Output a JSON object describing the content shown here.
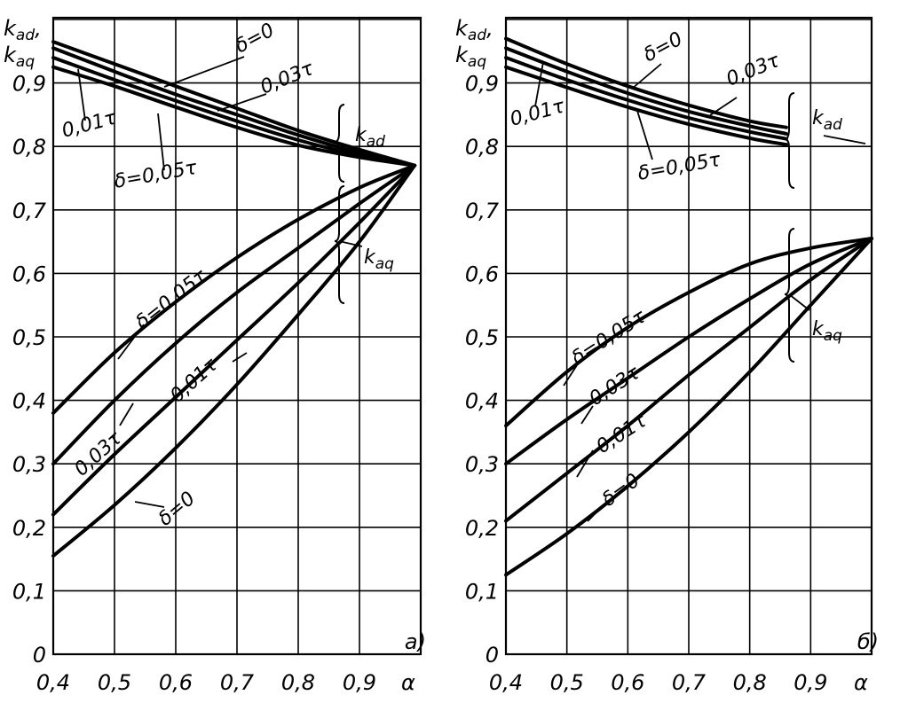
{
  "chart_data": [
    {
      "type": "line",
      "panel_label": "a)",
      "xlabel": "α",
      "ylabel_lines": [
        "k",
        "ad",
        ",",
        "k",
        "aq"
      ],
      "xlim": [
        0.4,
        1.0
      ],
      "ylim": [
        0,
        1.0
      ],
      "x_ticks": [
        "0,4",
        "0,5",
        "0,6",
        "0,7",
        "0,8",
        "0,9"
      ],
      "y_ticks": [
        "0",
        "0,1",
        "0,2",
        "0,3",
        "0,4",
        "0,5",
        "0,6",
        "0,7",
        "0,8",
        "0,9"
      ],
      "grid": true,
      "series": [
        {
          "name": "δ=0",
          "group": "kad",
          "x": [
            0.4,
            0.5,
            0.6,
            0.7,
            0.8,
            0.9,
            0.99
          ],
          "y": [
            0.965,
            0.93,
            0.895,
            0.86,
            0.825,
            0.795,
            0.77
          ]
        },
        {
          "name": "0,01τ",
          "group": "kad",
          "x": [
            0.4,
            0.5,
            0.6,
            0.7,
            0.8,
            0.9,
            0.99
          ],
          "y": [
            0.955,
            0.918,
            0.882,
            0.85,
            0.818,
            0.79,
            0.77
          ]
        },
        {
          "name": "0,03τ",
          "group": "kad",
          "x": [
            0.4,
            0.5,
            0.6,
            0.7,
            0.8,
            0.9,
            0.99
          ],
          "y": [
            0.94,
            0.905,
            0.872,
            0.84,
            0.81,
            0.786,
            0.77
          ]
        },
        {
          "name": "δ=0,05τ",
          "group": "kad",
          "x": [
            0.4,
            0.5,
            0.6,
            0.7,
            0.8,
            0.9,
            0.99
          ],
          "y": [
            0.925,
            0.895,
            0.862,
            0.83,
            0.802,
            0.783,
            0.77
          ]
        },
        {
          "name": "δ=0,05τ",
          "group": "kaq",
          "x": [
            0.4,
            0.5,
            0.6,
            0.7,
            0.8,
            0.9,
            0.99
          ],
          "y": [
            0.38,
            0.475,
            0.555,
            0.625,
            0.685,
            0.735,
            0.77
          ]
        },
        {
          "name": "0,03τ",
          "group": "kaq",
          "x": [
            0.4,
            0.5,
            0.6,
            0.7,
            0.8,
            0.9,
            0.99
          ],
          "y": [
            0.3,
            0.4,
            0.49,
            0.57,
            0.64,
            0.71,
            0.77
          ]
        },
        {
          "name": "0,01τ",
          "group": "kaq",
          "x": [
            0.4,
            0.5,
            0.6,
            0.7,
            0.8,
            0.9,
            0.99
          ],
          "y": [
            0.22,
            0.315,
            0.405,
            0.495,
            0.585,
            0.68,
            0.77
          ]
        },
        {
          "name": "δ=0",
          "group": "kaq",
          "x": [
            0.4,
            0.5,
            0.6,
            0.7,
            0.8,
            0.9,
            0.99
          ],
          "y": [
            0.155,
            0.235,
            0.325,
            0.425,
            0.535,
            0.65,
            0.77
          ]
        }
      ],
      "annotations": [
        "δ=0",
        "0,03τ",
        "0,01τ",
        "δ=0,05τ",
        "k_ad",
        "k_aq",
        "δ=0,05τ",
        "0,03τ",
        "0,01τ",
        "δ=0"
      ]
    },
    {
      "type": "line",
      "panel_label": "б)",
      "xlabel": "α",
      "ylabel_lines": [
        "k",
        "ad",
        ",",
        "k",
        "aq"
      ],
      "xlim": [
        0.4,
        1.0
      ],
      "ylim": [
        0,
        1.0
      ],
      "x_ticks": [
        "0,4",
        "0,5",
        "0,6",
        "0,7",
        "0,8",
        "0,9"
      ],
      "y_ticks": [
        "0",
        "0,1",
        "0,2",
        "0,3",
        "0,4",
        "0,5",
        "0,6",
        "0,7",
        "0,8",
        "0,9"
      ],
      "grid": true,
      "series": [
        {
          "name": "δ=0",
          "group": "kad",
          "x": [
            0.4,
            0.5,
            0.6,
            0.7,
            0.8,
            0.86
          ],
          "y": [
            0.97,
            0.93,
            0.895,
            0.865,
            0.84,
            0.83
          ]
        },
        {
          "name": "0,01τ",
          "group": "kad",
          "x": [
            0.4,
            0.5,
            0.6,
            0.7,
            0.8,
            0.86
          ],
          "y": [
            0.955,
            0.918,
            0.884,
            0.855,
            0.832,
            0.82
          ]
        },
        {
          "name": "0,03τ",
          "group": "kad",
          "x": [
            0.4,
            0.5,
            0.6,
            0.7,
            0.8,
            0.86
          ],
          "y": [
            0.94,
            0.905,
            0.873,
            0.845,
            0.823,
            0.812
          ]
        },
        {
          "name": "δ=0,05τ",
          "group": "kad",
          "x": [
            0.4,
            0.5,
            0.6,
            0.7,
            0.8,
            0.86
          ],
          "y": [
            0.925,
            0.893,
            0.862,
            0.835,
            0.813,
            0.803
          ]
        },
        {
          "name": "δ=0,05τ",
          "group": "kaq",
          "x": [
            0.4,
            0.5,
            0.6,
            0.7,
            0.8,
            0.9,
            1.0
          ],
          "y": [
            0.36,
            0.445,
            0.515,
            0.57,
            0.615,
            0.64,
            0.655
          ]
        },
        {
          "name": "0,03τ",
          "group": "kaq",
          "x": [
            0.4,
            0.5,
            0.6,
            0.7,
            0.8,
            0.9,
            1.0
          ],
          "y": [
            0.3,
            0.37,
            0.435,
            0.5,
            0.56,
            0.615,
            0.655
          ]
        },
        {
          "name": "0,01τ",
          "group": "kaq",
          "x": [
            0.4,
            0.5,
            0.6,
            0.7,
            0.8,
            0.9,
            1.0
          ],
          "y": [
            0.21,
            0.285,
            0.36,
            0.44,
            0.515,
            0.59,
            0.655
          ]
        },
        {
          "name": "δ=0",
          "group": "kaq",
          "x": [
            0.4,
            0.5,
            0.6,
            0.7,
            0.8,
            0.9,
            1.0
          ],
          "y": [
            0.125,
            0.19,
            0.265,
            0.35,
            0.445,
            0.55,
            0.655
          ]
        }
      ],
      "annotations": [
        "δ=0",
        "0,03τ",
        "0,01τ",
        "δ=0,05τ",
        "k_ad",
        "k_aq",
        "δ=0,05τ",
        "0,03τ",
        "0,01τ",
        "δ=0"
      ]
    }
  ],
  "text": {
    "a_kad_d0": "δ=0",
    "a_kad_003": "0,03τ",
    "a_kad_001": "0,01τ",
    "a_kad_005": "δ=0,05τ",
    "a_kad_k": "k",
    "a_kad_sub": "ad",
    "a_kaq_k": "k",
    "a_kaq_sub": "aq",
    "a_kaq_005": "δ=0,05τ",
    "a_kaq_001": "0,01τ",
    "a_kaq_003": "0,03τ",
    "a_kaq_d0": "δ=0",
    "b_kad_d0": "δ=0",
    "b_kad_003": "0,03τ",
    "b_kad_001": "0,01τ",
    "b_kad_005": "δ=0,05τ",
    "b_kad_k": "k",
    "b_kad_sub": "ad",
    "b_kaq_k": "k",
    "b_kaq_sub": "aq",
    "b_kaq_005": "δ=0,05τ",
    "b_kaq_003": "0,03τ",
    "b_kaq_001": "0,01τ",
    "b_kaq_d0": "δ=0"
  }
}
